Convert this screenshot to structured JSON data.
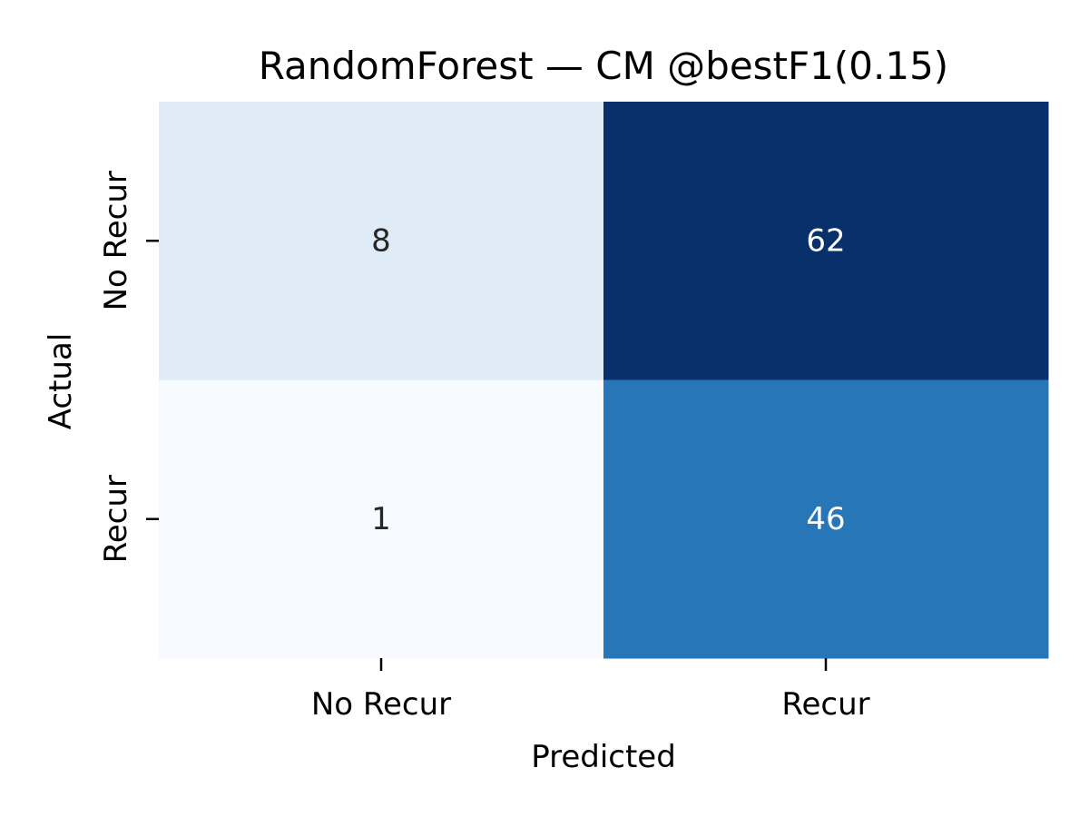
{
  "chart_data": {
    "type": "heatmap",
    "title": "RandomForest — CM @bestF1(0.15)",
    "xlabel": "Predicted",
    "ylabel": "Actual",
    "x_categories": [
      "No Recur",
      "Recur"
    ],
    "y_categories": [
      "No Recur",
      "Recur"
    ],
    "values": [
      [
        8,
        62
      ],
      [
        1,
        46
      ]
    ],
    "colormap": "Blues",
    "cell_colors": [
      [
        "#dfebf7",
        "#08306b"
      ],
      [
        "#f7fbff",
        "#2676b8"
      ]
    ],
    "text_colors": [
      [
        "#262626",
        "#ffffff"
      ],
      [
        "#262626",
        "#ffffff"
      ]
    ],
    "colorbar": false,
    "grid": false
  }
}
